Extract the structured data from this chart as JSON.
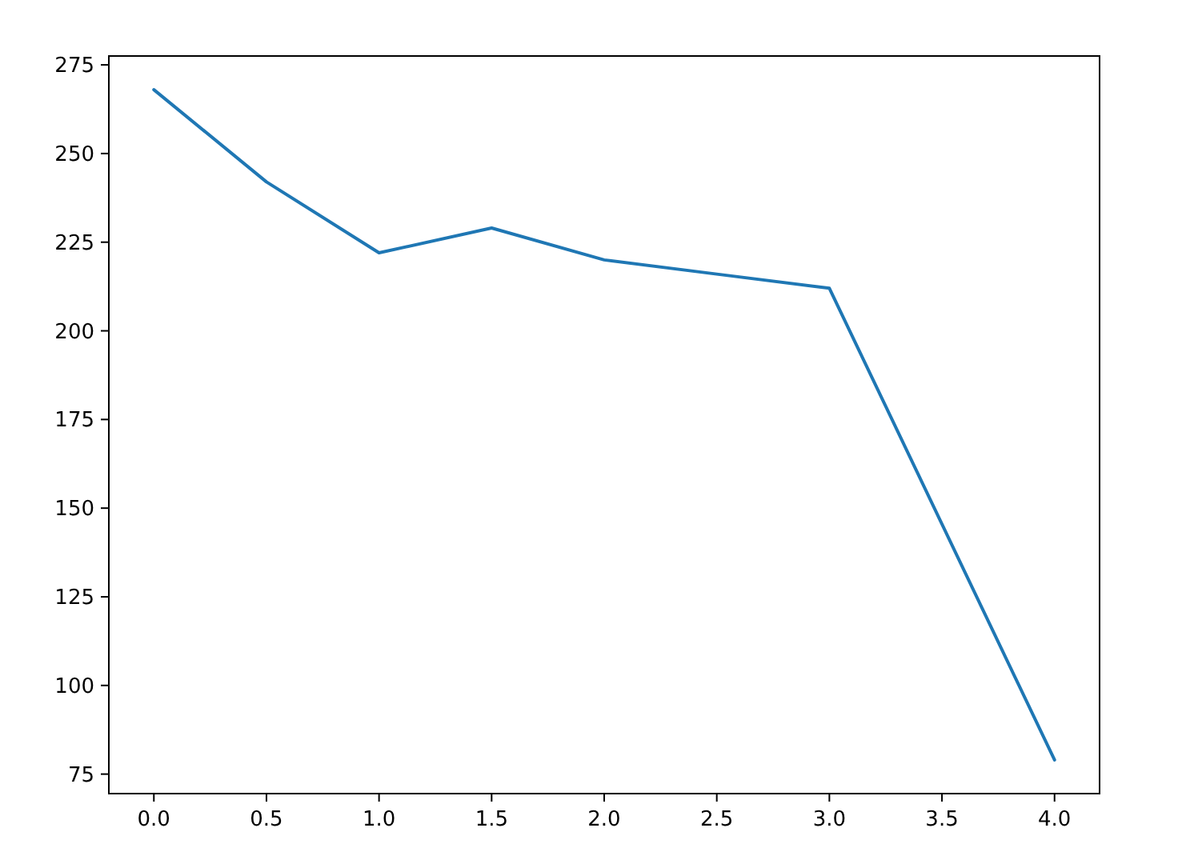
{
  "chart_data": {
    "type": "line",
    "x": [
      0,
      0.5,
      1,
      1.5,
      2,
      2.5,
      3,
      4
    ],
    "series": [
      {
        "color": "#1f77b4",
        "values": [
          268,
          242,
          222,
          229,
          220,
          216,
          212,
          79
        ]
      }
    ],
    "xlim": [
      -0.2,
      4.2
    ],
    "xticks": [
      {
        "value": 0,
        "label": "0.0"
      },
      {
        "value": 0.5,
        "label": "0.5"
      },
      {
        "value": 1,
        "label": "1.0"
      },
      {
        "value": 1.5,
        "label": "1.5"
      },
      {
        "value": 2,
        "label": "2.0"
      },
      {
        "value": 2.5,
        "label": "2.5"
      },
      {
        "value": 3,
        "label": "3.0"
      },
      {
        "value": 3.5,
        "label": "3.5"
      },
      {
        "value": 4,
        "label": "4.0"
      }
    ],
    "ylim": [
      69.5,
      277.5
    ],
    "yticks": [
      75,
      100,
      125,
      150,
      175,
      200,
      225,
      250,
      275
    ],
    "grid": false
  }
}
